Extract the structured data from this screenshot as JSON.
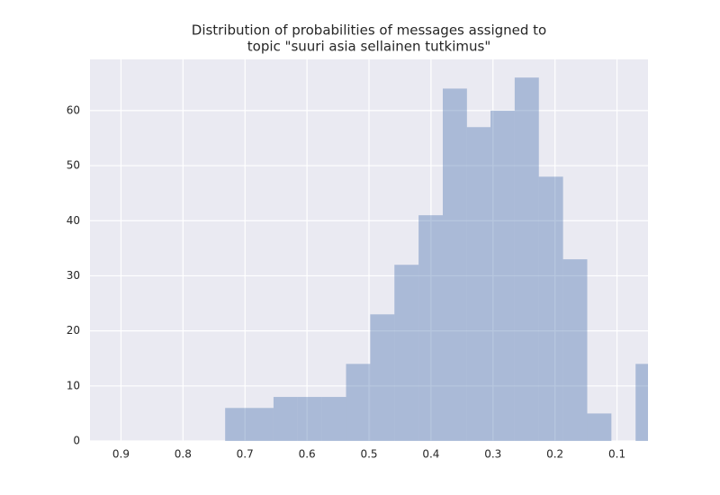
{
  "chart_data": {
    "type": "histogram",
    "title": [
      "Distribution of probabilities of messages assigned to",
      "topic \"suuri asia sellainen tutkimus\""
    ],
    "bins": [
      0.732,
      0.693,
      0.654,
      0.615,
      0.576,
      0.537,
      0.498,
      0.459,
      0.42,
      0.381,
      0.342,
      0.304,
      0.265,
      0.226,
      0.187,
      0.148,
      0.109,
      0.07,
      0.031
    ],
    "counts": [
      6,
      6,
      8,
      8,
      8,
      14,
      23,
      32,
      41,
      64,
      57,
      60,
      66,
      48,
      33,
      5,
      0,
      14
    ],
    "color": "#4c72b0",
    "alpha": 0.4,
    "xlim": [
      0.95,
      0.05
    ],
    "xticks": [
      0.9,
      0.8,
      0.7,
      0.6,
      0.5,
      0.4,
      0.3,
      0.2,
      0.1
    ],
    "ylim": [
      0,
      69.3
    ],
    "yticks": [
      0,
      10,
      20,
      30,
      40,
      50,
      60
    ],
    "grid": true
  }
}
